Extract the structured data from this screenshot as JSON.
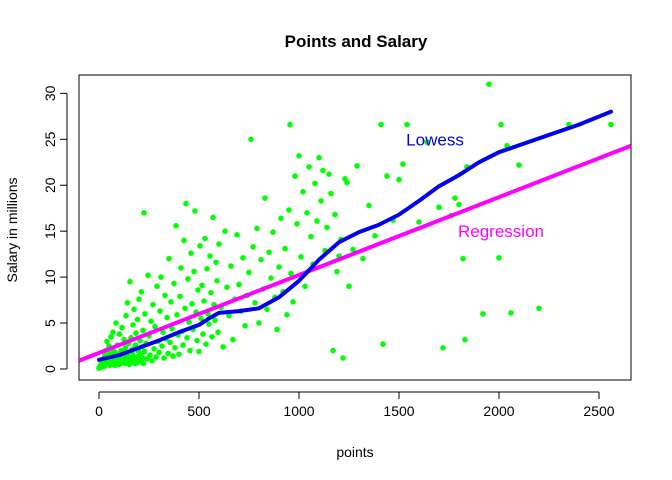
{
  "chart_data": {
    "type": "scatter",
    "title": "Points and Salary",
    "xlabel": "points",
    "ylabel": "Salary in millions",
    "xlim": [
      -100,
      2660
    ],
    "ylim": [
      -1.2,
      32
    ],
    "x_ticks": [
      "0",
      "500",
      "1000",
      "1500",
      "2000",
      "2500"
    ],
    "y_ticks": [
      "0",
      "5",
      "10",
      "15",
      "20",
      "25",
      "30"
    ],
    "x_tick_values": [
      0,
      500,
      1000,
      1500,
      2000,
      2500
    ],
    "y_tick_values": [
      0,
      5,
      10,
      15,
      20,
      25,
      30
    ],
    "grid": false,
    "colors": {
      "points": "#00ff00",
      "lowess": "#0000ee",
      "regression": "#ff00ff"
    },
    "annotations": [
      {
        "label": "Lowess",
        "x": 1680,
        "y": 25,
        "color": "#0000ee"
      },
      {
        "label": "Regression",
        "x": 2010,
        "y": 15,
        "color": "#ff00ff"
      }
    ],
    "series": [
      {
        "type": "scatter",
        "points": [
          [
            0,
            0.1
          ],
          [
            5,
            0.3
          ],
          [
            10,
            0.5
          ],
          [
            12,
            0.2
          ],
          [
            15,
            0.6
          ],
          [
            18,
            1.0
          ],
          [
            20,
            0.4
          ],
          [
            22,
            0.8
          ],
          [
            25,
            1.2
          ],
          [
            28,
            0.3
          ],
          [
            30,
            1.5
          ],
          [
            32,
            0.9
          ],
          [
            35,
            2.0
          ],
          [
            38,
            0.5
          ],
          [
            40,
            3.0
          ],
          [
            42,
            1.1
          ],
          [
            45,
            0.7
          ],
          [
            48,
            1.4
          ],
          [
            50,
            2.5
          ],
          [
            52,
            0.4
          ],
          [
            55,
            0.9
          ],
          [
            58,
            1.7
          ],
          [
            60,
            3.5
          ],
          [
            62,
            0.6
          ],
          [
            65,
            1.0
          ],
          [
            68,
            2.2
          ],
          [
            70,
            4.0
          ],
          [
            72,
            0.5
          ],
          [
            75,
            1.3
          ],
          [
            78,
            0.8
          ],
          [
            80,
            1.8
          ],
          [
            82,
            0.4
          ],
          [
            85,
            5.0
          ],
          [
            88,
            1.1
          ],
          [
            90,
            0.7
          ],
          [
            92,
            2.6
          ],
          [
            95,
            1.6
          ],
          [
            98,
            0.9
          ],
          [
            100,
            0.5
          ],
          [
            102,
            3.8
          ],
          [
            105,
            1.2
          ],
          [
            108,
            0.6
          ],
          [
            110,
            2.0
          ],
          [
            112,
            0.9
          ],
          [
            115,
            4.5
          ],
          [
            118,
            1.4
          ],
          [
            120,
            0.7
          ],
          [
            122,
            1.9
          ],
          [
            125,
            3.2
          ],
          [
            128,
            1.0
          ],
          [
            130,
            0.6
          ],
          [
            132,
            2.3
          ],
          [
            135,
            5.8
          ],
          [
            138,
            0.8
          ],
          [
            140,
            1.5
          ],
          [
            142,
            7.2
          ],
          [
            145,
            0.9
          ],
          [
            148,
            2.8
          ],
          [
            150,
            1.3
          ],
          [
            152,
            0.5
          ],
          [
            155,
            9.5
          ],
          [
            158,
            1.1
          ],
          [
            160,
            3.4
          ],
          [
            162,
            0.7
          ],
          [
            165,
            2.1
          ],
          [
            168,
            1.6
          ],
          [
            170,
            4.8
          ],
          [
            172,
            0.9
          ],
          [
            175,
            6.5
          ],
          [
            178,
            1.2
          ],
          [
            180,
            0.6
          ],
          [
            182,
            2.6
          ],
          [
            185,
            3.9
          ],
          [
            188,
            1.0
          ],
          [
            190,
            0.7
          ],
          [
            192,
            5.4
          ],
          [
            195,
            2.0
          ],
          [
            198,
            1.4
          ],
          [
            200,
            7.6
          ],
          [
            202,
            0.8
          ],
          [
            205,
            3.1
          ],
          [
            208,
            1.7
          ],
          [
            210,
            0.9
          ],
          [
            212,
            8.4
          ],
          [
            215,
            2.4
          ],
          [
            218,
            1.2
          ],
          [
            220,
            4.2
          ],
          [
            222,
            0.6
          ],
          [
            225,
            17.0
          ],
          [
            228,
            1.9
          ],
          [
            230,
            6.0
          ],
          [
            235,
            2.8
          ],
          [
            240,
            1.1
          ],
          [
            245,
            10.2
          ],
          [
            250,
            3.6
          ],
          [
            255,
            1.5
          ],
          [
            260,
            5.2
          ],
          [
            265,
            0.9
          ],
          [
            270,
            7.0
          ],
          [
            275,
            2.2
          ],
          [
            280,
            4.6
          ],
          [
            285,
            1.3
          ],
          [
            290,
            9.0
          ],
          [
            295,
            3.0
          ],
          [
            300,
            1.8
          ],
          [
            305,
            6.3
          ],
          [
            310,
            10.0
          ],
          [
            315,
            2.5
          ],
          [
            320,
            4.0
          ],
          [
            325,
            1.2
          ],
          [
            330,
            8.0
          ],
          [
            335,
            3.3
          ],
          [
            340,
            5.6
          ],
          [
            345,
            1.7
          ],
          [
            350,
            12.0
          ],
          [
            355,
            2.9
          ],
          [
            360,
            7.3
          ],
          [
            365,
            4.4
          ],
          [
            370,
            1.4
          ],
          [
            375,
            9.3
          ],
          [
            380,
            2.3
          ],
          [
            385,
            15.6
          ],
          [
            390,
            5.9
          ],
          [
            395,
            3.7
          ],
          [
            400,
            1.6
          ],
          [
            405,
            7.9
          ],
          [
            410,
            11.0
          ],
          [
            415,
            4.1
          ],
          [
            420,
            2.6
          ],
          [
            425,
            14.0
          ],
          [
            430,
            6.6
          ],
          [
            435,
            18.0
          ],
          [
            440,
            3.4
          ],
          [
            445,
            9.8
          ],
          [
            450,
            5.1
          ],
          [
            455,
            2.0
          ],
          [
            460,
            12.6
          ],
          [
            465,
            7.1
          ],
          [
            470,
            4.3
          ],
          [
            475,
            10.6
          ],
          [
            480,
            17.2
          ],
          [
            485,
            6.2
          ],
          [
            490,
            3.1
          ],
          [
            495,
            8.6
          ],
          [
            500,
            1.9
          ],
          [
            505,
            13.4
          ],
          [
            510,
            5.5
          ],
          [
            515,
            9.1
          ],
          [
            520,
            3.8
          ],
          [
            525,
            7.4
          ],
          [
            530,
            14.2
          ],
          [
            535,
            2.7
          ],
          [
            540,
            10.9
          ],
          [
            545,
            6.0
          ],
          [
            550,
            4.9
          ],
          [
            555,
            12.3
          ],
          [
            560,
            8.3
          ],
          [
            565,
            3.5
          ],
          [
            570,
            16.5
          ],
          [
            575,
            7.0
          ],
          [
            580,
            5.3
          ],
          [
            585,
            11.6
          ],
          [
            590,
            9.6
          ],
          [
            595,
            4.0
          ],
          [
            600,
            13.6
          ],
          [
            610,
            6.7
          ],
          [
            620,
            2.4
          ],
          [
            630,
            15.0
          ],
          [
            640,
            8.9
          ],
          [
            650,
            5.8
          ],
          [
            660,
            11.2
          ],
          [
            670,
            3.2
          ],
          [
            680,
            7.6
          ],
          [
            690,
            14.6
          ],
          [
            700,
            9.2
          ],
          [
            710,
            6.3
          ],
          [
            720,
            12.1
          ],
          [
            730,
            4.7
          ],
          [
            740,
            8.0
          ],
          [
            750,
            10.5
          ],
          [
            760,
            25.0
          ],
          [
            770,
            13.3
          ],
          [
            780,
            7.2
          ],
          [
            790,
            15.3
          ],
          [
            800,
            5.0
          ],
          [
            810,
            11.9
          ],
          [
            820,
            8.7
          ],
          [
            830,
            18.6
          ],
          [
            840,
            6.5
          ],
          [
            850,
            12.7
          ],
          [
            860,
            9.9
          ],
          [
            870,
            14.9
          ],
          [
            880,
            7.8
          ],
          [
            890,
            4.3
          ],
          [
            900,
            11.1
          ],
          [
            910,
            16.4
          ],
          [
            920,
            8.4
          ],
          [
            930,
            13.1
          ],
          [
            940,
            5.9
          ],
          [
            950,
            17.3
          ],
          [
            955,
            26.6
          ],
          [
            960,
            10.4
          ],
          [
            970,
            7.3
          ],
          [
            980,
            21.0
          ],
          [
            990,
            15.8
          ],
          [
            1000,
            23.2
          ],
          [
            1010,
            12.2
          ],
          [
            1020,
            19.3
          ],
          [
            1030,
            9.0
          ],
          [
            1040,
            17.0
          ],
          [
            1050,
            22.0
          ],
          [
            1060,
            14.4
          ],
          [
            1070,
            11.4
          ],
          [
            1080,
            20.2
          ],
          [
            1090,
            16.1
          ],
          [
            1100,
            23.0
          ],
          [
            1110,
            18.3
          ],
          [
            1120,
            21.6
          ],
          [
            1130,
            12.9
          ],
          [
            1140,
            15.4
          ],
          [
            1150,
            21.2
          ],
          [
            1160,
            19.1
          ],
          [
            1170,
            2.0
          ],
          [
            1180,
            16.8
          ],
          [
            1190,
            10.6
          ],
          [
            1200,
            12.3
          ],
          [
            1210,
            14.1
          ],
          [
            1220,
            1.2
          ],
          [
            1230,
            20.7
          ],
          [
            1240,
            20.3
          ],
          [
            1250,
            9.0
          ],
          [
            1270,
            13.0
          ],
          [
            1290,
            22.1
          ],
          [
            1320,
            12.0
          ],
          [
            1350,
            17.8
          ],
          [
            1380,
            14.5
          ],
          [
            1410,
            26.6
          ],
          [
            1420,
            2.7
          ],
          [
            1440,
            21.0
          ],
          [
            1470,
            16.2
          ],
          [
            1500,
            20.6
          ],
          [
            1520,
            22.3
          ],
          [
            1540,
            26.6
          ],
          [
            1600,
            16.0
          ],
          [
            1640,
            24.7
          ],
          [
            1700,
            17.6
          ],
          [
            1720,
            2.3
          ],
          [
            1760,
            16.7
          ],
          [
            1780,
            18.6
          ],
          [
            1800,
            17.9
          ],
          [
            1820,
            12.0
          ],
          [
            1830,
            3.2
          ],
          [
            1840,
            22.0
          ],
          [
            1920,
            6.0
          ],
          [
            1950,
            31.0
          ],
          [
            2000,
            12.1
          ],
          [
            2010,
            26.6
          ],
          [
            2040,
            24.3
          ],
          [
            2060,
            6.1
          ],
          [
            2100,
            22.2
          ],
          [
            2200,
            6.6
          ],
          [
            2350,
            26.6
          ],
          [
            2560,
            26.6
          ]
        ]
      },
      {
        "type": "line",
        "name": "Lowess",
        "points": [
          [
            0,
            1.0
          ],
          [
            100,
            1.5
          ],
          [
            200,
            2.3
          ],
          [
            300,
            3.1
          ],
          [
            400,
            4.0
          ],
          [
            500,
            4.8
          ],
          [
            550,
            5.5
          ],
          [
            600,
            6.1
          ],
          [
            700,
            6.3
          ],
          [
            800,
            6.6
          ],
          [
            900,
            7.8
          ],
          [
            1000,
            9.6
          ],
          [
            1100,
            11.9
          ],
          [
            1200,
            13.8
          ],
          [
            1300,
            14.9
          ],
          [
            1400,
            15.7
          ],
          [
            1500,
            16.8
          ],
          [
            1600,
            18.3
          ],
          [
            1700,
            19.9
          ],
          [
            1800,
            21.1
          ],
          [
            1900,
            22.5
          ],
          [
            2000,
            23.6
          ],
          [
            2200,
            25.1
          ],
          [
            2400,
            26.6
          ],
          [
            2560,
            28.0
          ]
        ]
      },
      {
        "type": "line",
        "name": "Regression",
        "points": [
          [
            -100,
            0.9
          ],
          [
            2660,
            24.3
          ]
        ]
      }
    ]
  }
}
